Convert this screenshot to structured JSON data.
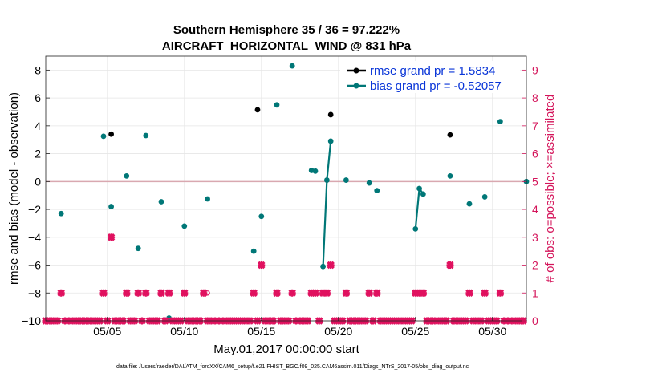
{
  "chart_data": {
    "type": "scatter",
    "title": "Southern Hemisphere 35 / 36 = 97.222%",
    "subtitle": "AIRCRAFT_HORIZONTAL_WIND @ 831 hPa",
    "xlabel": "May.01,2017 00:00:00 start",
    "ylabel": "rmse and bias (model - observation)",
    "y2label": "# of obs: o=possible; ×=assimilated",
    "xlim": [
      1,
      32.2
    ],
    "ylim": [
      -10,
      9
    ],
    "y2lim": [
      0,
      9.5
    ],
    "x_ticks": [
      5,
      10,
      15,
      20,
      25,
      30
    ],
    "x_tick_labels": [
      "05/05",
      "05/10",
      "05/15",
      "05/20",
      "05/25",
      "05/30"
    ],
    "y_ticks": [
      -10,
      -8,
      -6,
      -4,
      -2,
      0,
      2,
      4,
      6,
      8
    ],
    "y_tick_labels": [
      "−10",
      "−8",
      "−6",
      "−4",
      "−2",
      "0",
      "2",
      "4",
      "6",
      "8"
    ],
    "y2_ticks": [
      0,
      1,
      2,
      3,
      4,
      5,
      6,
      7,
      8,
      9
    ],
    "y2_tick_labels": [
      "0",
      "1",
      "2",
      "3",
      "4",
      "5",
      "6",
      "7",
      "8",
      "9"
    ],
    "grid": true,
    "zero_line": true,
    "legend": {
      "location": "top-right",
      "entries": [
        {
          "label": "rmse grand pr = 1.5834",
          "color": "#000000"
        },
        {
          "label": "bias grand pr = -0.52057",
          "color": "#007777"
        }
      ]
    },
    "series": [
      {
        "name": "rmse",
        "color": "#000000",
        "axis": "left",
        "points": [
          [
            5.25,
            3.4
          ],
          [
            14.75,
            5.15
          ],
          [
            19.5,
            4.8
          ],
          [
            27.25,
            3.35
          ]
        ],
        "segments": []
      },
      {
        "name": "bias",
        "color": "#007777",
        "axis": "left",
        "points": [
          [
            2,
            -2.3
          ],
          [
            4.75,
            3.25
          ],
          [
            5.25,
            -1.8
          ],
          [
            6.25,
            0.4
          ],
          [
            7,
            -4.8
          ],
          [
            7.5,
            3.3
          ],
          [
            8.5,
            -1.45
          ],
          [
            9,
            -9.8
          ],
          [
            10,
            -3.2
          ],
          [
            11.5,
            -1.25
          ],
          [
            14.5,
            -5
          ],
          [
            15,
            -2.5
          ],
          [
            16,
            5.5
          ],
          [
            17,
            8.3
          ],
          [
            18.25,
            0.8
          ],
          [
            18.5,
            0.75
          ],
          [
            19,
            -6.1
          ],
          [
            19.25,
            0.1
          ],
          [
            19.5,
            2.9
          ],
          [
            20.5,
            0.1
          ],
          [
            22,
            -0.1
          ],
          [
            22.5,
            -0.65
          ],
          [
            25,
            -3.4
          ],
          [
            25.25,
            -0.5
          ],
          [
            25.5,
            -0.9
          ],
          [
            27.25,
            0.4
          ],
          [
            28.5,
            -1.6
          ],
          [
            29.5,
            -1.1
          ],
          [
            30.5,
            4.3
          ],
          [
            32.2,
            0
          ]
        ],
        "segments": [
          [
            [
              19,
              -6.1
            ],
            [
              19.25,
              0.1
            ],
            [
              19.5,
              2.9
            ]
          ],
          [
            [
              25,
              -3.4
            ],
            [
              25.25,
              -0.5
            ],
            [
              25.5,
              -0.9
            ]
          ]
        ]
      },
      {
        "name": "obs_possible",
        "color": "#e0115f",
        "axis": "right",
        "marker": "circle",
        "points": [
          [
            11.5,
            1
          ]
        ]
      },
      {
        "name": "obs_assimilated",
        "color": "#e0115f",
        "axis": "right",
        "marker": "cross",
        "points": [
          [
            2,
            1
          ],
          [
            4.75,
            1
          ],
          [
            5.25,
            3
          ],
          [
            6.25,
            1
          ],
          [
            7,
            1
          ],
          [
            7.5,
            1
          ],
          [
            8.5,
            1
          ],
          [
            9,
            1
          ],
          [
            10,
            1
          ],
          [
            11.25,
            1
          ],
          [
            14.5,
            1
          ],
          [
            15,
            2
          ],
          [
            16,
            1
          ],
          [
            17,
            1
          ],
          [
            18.25,
            1
          ],
          [
            18.5,
            1
          ],
          [
            19,
            1
          ],
          [
            19.25,
            1
          ],
          [
            19.5,
            2
          ],
          [
            20.5,
            1
          ],
          [
            22,
            1
          ],
          [
            22.5,
            1
          ],
          [
            25,
            1
          ],
          [
            25.25,
            1
          ],
          [
            25.5,
            1
          ],
          [
            27.25,
            2
          ],
          [
            28.5,
            1
          ],
          [
            29.5,
            1
          ],
          [
            30.5,
            1
          ]
        ],
        "zero_count_from": 1,
        "zero_count_to": 32.2,
        "zero_count_step": 0.25
      }
    ]
  },
  "footer": {
    "text": "data file: /Users/raeder/DAI/ATM_forcXX/CAM6_setup/f.e21.FHIST_BGC.f09_025.CAM6assim.011/Diags_NTrS_2017-05/obs_diag_output.nc"
  }
}
